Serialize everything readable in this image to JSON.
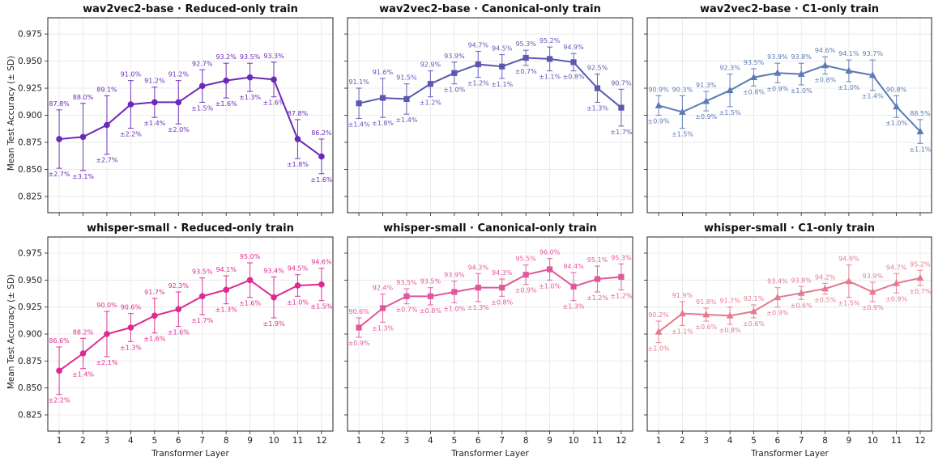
{
  "ylabel": "Mean Test Accuracy (± SD)",
  "xlabel": "Transformer Layer",
  "chart_data": [
    {
      "type": "line",
      "title": "wav2vec2-base · Reduced-only train",
      "x": [
        1,
        2,
        3,
        4,
        5,
        6,
        7,
        8,
        9,
        10,
        11,
        12
      ],
      "values": [
        0.878,
        0.88,
        0.891,
        0.91,
        0.912,
        0.912,
        0.927,
        0.932,
        0.935,
        0.933,
        0.878,
        0.862
      ],
      "value_labels": [
        "87.8%",
        "88.0%",
        "89.1%",
        "91.0%",
        "91.2%",
        "91.2%",
        "92.7%",
        "93.2%",
        "93.5%",
        "93.3%",
        "87.8%",
        "86.2%"
      ],
      "sd": [
        0.027,
        0.031,
        0.027,
        0.022,
        0.014,
        0.02,
        0.015,
        0.016,
        0.013,
        0.016,
        0.018,
        0.016
      ],
      "sd_labels": [
        "±2.7%",
        "±3.1%",
        "±2.7%",
        "±2.2%",
        "±1.4%",
        "±2.0%",
        "±1.5%",
        "±1.6%",
        "±1.3%",
        "±1.6%",
        "±1.8%",
        "±1.6%"
      ],
      "marker": "circle",
      "color": "#6a2ab8",
      "ylim": [
        0.81,
        0.99
      ],
      "yticks": [
        0.825,
        0.85,
        0.875,
        0.9,
        0.925,
        0.95,
        0.975
      ],
      "grid": true
    },
    {
      "type": "line",
      "title": "wav2vec2-base · Canonical-only train",
      "x": [
        1,
        2,
        3,
        4,
        5,
        6,
        7,
        8,
        9,
        10,
        11,
        12
      ],
      "values": [
        0.911,
        0.916,
        0.915,
        0.929,
        0.939,
        0.947,
        0.945,
        0.953,
        0.952,
        0.949,
        0.925,
        0.907
      ],
      "value_labels": [
        "91.1%",
        "91.6%",
        "91.5%",
        "92.9%",
        "93.9%",
        "94.7%",
        "94.5%",
        "95.3%",
        "95.2%",
        "94.9%",
        "92.5%",
        "90.7%"
      ],
      "sd": [
        0.014,
        0.018,
        0.014,
        0.012,
        0.01,
        0.012,
        0.011,
        0.007,
        0.011,
        0.008,
        0.013,
        0.017
      ],
      "sd_labels": [
        "±1.4%",
        "±1.8%",
        "±1.4%",
        "±1.2%",
        "±1.0%",
        "±1.2%",
        "±1.1%",
        "±0.7%",
        "±1.1%",
        "±0.8%",
        "±1.3%",
        "±1.7%"
      ],
      "marker": "square",
      "color": "#5c58b0",
      "ylim": [
        0.81,
        0.99
      ],
      "yticks": [
        0.825,
        0.85,
        0.875,
        0.9,
        0.925,
        0.95,
        0.975
      ],
      "grid": true
    },
    {
      "type": "line",
      "title": "wav2vec2-base · C1-only train",
      "x": [
        1,
        2,
        3,
        4,
        5,
        6,
        7,
        8,
        9,
        10,
        11,
        12
      ],
      "values": [
        0.909,
        0.903,
        0.913,
        0.923,
        0.935,
        0.939,
        0.938,
        0.946,
        0.941,
        0.937,
        0.908,
        0.885
      ],
      "value_labels": [
        "90.9%",
        "90.3%",
        "91.3%",
        "92.3%",
        "93.5%",
        "93.9%",
        "93.8%",
        "94.6%",
        "94.1%",
        "93.7%",
        "90.8%",
        "88.5%"
      ],
      "sd": [
        0.009,
        0.015,
        0.009,
        0.015,
        0.008,
        0.009,
        0.01,
        0.008,
        0.01,
        0.014,
        0.01,
        0.011
      ],
      "sd_labels": [
        "±0.9%",
        "±1.5%",
        "±0.9%",
        "±1.5%",
        "±0.8%",
        "±0.9%",
        "±1.0%",
        "±0.8%",
        "±1.0%",
        "±1.4%",
        "±1.0%",
        "±1.1%"
      ],
      "marker": "triangle",
      "color": "#5b7bb4",
      "ylim": [
        0.81,
        0.99
      ],
      "yticks": [
        0.825,
        0.85,
        0.875,
        0.9,
        0.925,
        0.95,
        0.975
      ],
      "grid": true
    },
    {
      "type": "line",
      "title": "whisper-small · Reduced-only train",
      "x": [
        1,
        2,
        3,
        4,
        5,
        6,
        7,
        8,
        9,
        10,
        11,
        12
      ],
      "values": [
        0.866,
        0.882,
        0.9,
        0.906,
        0.917,
        0.923,
        0.935,
        0.941,
        0.95,
        0.934,
        0.945,
        0.946
      ],
      "value_labels": [
        "86.6%",
        "88.2%",
        "90.0%",
        "90.6%",
        "91.7%",
        "92.3%",
        "93.5%",
        "94.1%",
        "95.0%",
        "93.4%",
        "94.5%",
        "94.6%"
      ],
      "sd": [
        0.022,
        0.014,
        0.021,
        0.013,
        0.016,
        0.016,
        0.017,
        0.013,
        0.016,
        0.019,
        0.01,
        0.015
      ],
      "sd_labels": [
        "±2.2%",
        "±1.4%",
        "±2.1%",
        "±1.3%",
        "±1.6%",
        "±1.6%",
        "±1.7%",
        "±1.3%",
        "±1.6%",
        "±1.9%",
        "±1.0%",
        "±1.5%"
      ],
      "marker": "circle",
      "color": "#dd2a91",
      "ylim": [
        0.81,
        0.99
      ],
      "yticks": [
        0.825,
        0.85,
        0.875,
        0.9,
        0.925,
        0.95,
        0.975
      ],
      "grid": true
    },
    {
      "type": "line",
      "title": "whisper-small · Canonical-only train",
      "x": [
        1,
        2,
        3,
        4,
        5,
        6,
        7,
        8,
        9,
        10,
        11,
        12
      ],
      "values": [
        0.906,
        0.924,
        0.935,
        0.935,
        0.939,
        0.943,
        0.943,
        0.955,
        0.96,
        0.944,
        0.951,
        0.953
      ],
      "value_labels": [
        "90.6%",
        "92.4%",
        "93.5%",
        "93.5%",
        "93.9%",
        "94.3%",
        "94.3%",
        "95.5%",
        "96.0%",
        "94.4%",
        "95.1%",
        "95.3%"
      ],
      "sd": [
        0.009,
        0.013,
        0.007,
        0.008,
        0.01,
        0.013,
        0.008,
        0.009,
        0.01,
        0.013,
        0.012,
        0.012
      ],
      "sd_labels": [
        "±0.9%",
        "±1.3%",
        "±0.7%",
        "±0.8%",
        "±1.0%",
        "±1.3%",
        "±0.8%",
        "±0.9%",
        "±1.0%",
        "±1.3%",
        "±1.2%",
        "±1.2%"
      ],
      "marker": "square",
      "color": "#e0589c",
      "ylim": [
        0.81,
        0.99
      ],
      "yticks": [
        0.825,
        0.85,
        0.875,
        0.9,
        0.925,
        0.95,
        0.975
      ],
      "grid": true
    },
    {
      "type": "line",
      "title": "whisper-small · C1-only train",
      "x": [
        1,
        2,
        3,
        4,
        5,
        6,
        7,
        8,
        9,
        10,
        11,
        12
      ],
      "values": [
        0.902,
        0.919,
        0.918,
        0.917,
        0.921,
        0.934,
        0.938,
        0.942,
        0.949,
        0.939,
        0.947,
        0.952
      ],
      "value_labels": [
        "90.2%",
        "91.9%",
        "91.8%",
        "91.7%",
        "92.1%",
        "93.4%",
        "93.8%",
        "94.2%",
        "94.9%",
        "93.9%",
        "94.7%",
        "95.2%"
      ],
      "sd": [
        0.01,
        0.011,
        0.006,
        0.008,
        0.006,
        0.009,
        0.006,
        0.005,
        0.015,
        0.009,
        0.009,
        0.007
      ],
      "sd_labels": [
        "±1.0%",
        "±1.1%",
        "±0.6%",
        "±0.8%",
        "±0.6%",
        "±0.9%",
        "±0.6%",
        "±0.5%",
        "±1.5%",
        "±0.9%",
        "±0.9%",
        "±0.7%"
      ],
      "marker": "triangle",
      "color": "#e47a8e",
      "ylim": [
        0.81,
        0.99
      ],
      "yticks": [
        0.825,
        0.85,
        0.875,
        0.9,
        0.925,
        0.95,
        0.975
      ],
      "grid": true
    }
  ]
}
